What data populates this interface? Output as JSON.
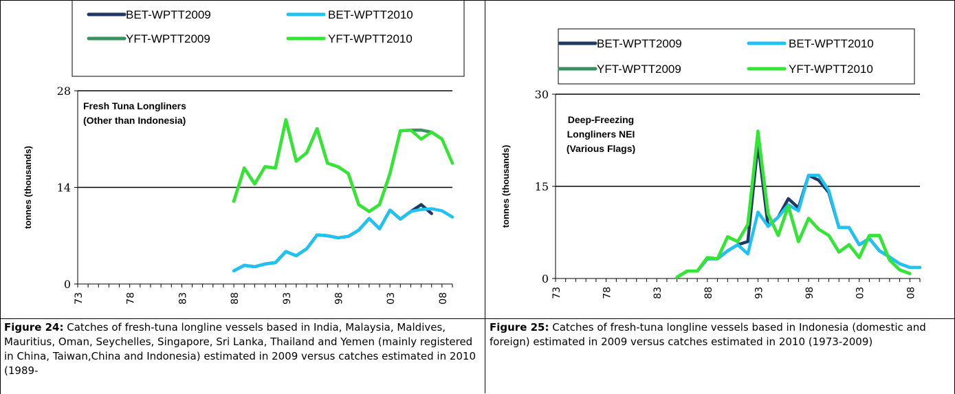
{
  "chart_data": [
    {
      "type": "line",
      "annotation": [
        "Fresh Tuna Longliners",
        "(Other than Indonesia)"
      ],
      "y_label": "tonnes (thousands)",
      "categories": [
        "73",
        null,
        null,
        null,
        null,
        "78",
        null,
        null,
        null,
        null,
        "83",
        null,
        null,
        null,
        null,
        "88",
        null,
        null,
        null,
        null,
        "93",
        null,
        null,
        null,
        null,
        "98",
        null,
        null,
        null,
        null,
        "03",
        null,
        null,
        null,
        null,
        "08",
        null
      ],
      "ylim": [
        0,
        28
      ],
      "yticks": [
        0,
        14,
        28
      ],
      "grid": true,
      "series": [
        {
          "name": "BET-WPTT2009",
          "color": "#1f3864",
          "values": [
            null,
            null,
            null,
            null,
            null,
            null,
            null,
            null,
            null,
            null,
            null,
            null,
            null,
            null,
            null,
            1.9,
            2.7,
            2.5,
            2.9,
            3.1,
            4.7,
            4.1,
            5.1,
            7.1,
            7.0,
            6.7,
            6.9,
            7.8,
            9.5,
            8.0,
            10.7,
            9.4,
            10.5,
            11.5,
            10.2,
            null,
            null
          ]
        },
        {
          "name": "BET-WPTT2010",
          "color": "#1ec3f2",
          "values": [
            null,
            null,
            null,
            null,
            null,
            null,
            null,
            null,
            null,
            null,
            null,
            null,
            null,
            null,
            null,
            1.9,
            2.7,
            2.5,
            2.9,
            3.1,
            4.7,
            4.1,
            5.1,
            7.1,
            7.0,
            6.7,
            6.9,
            7.8,
            9.5,
            8.0,
            10.7,
            9.4,
            10.5,
            10.8,
            10.9,
            10.6,
            9.7
          ]
        },
        {
          "name": "YFT-WPTT2009",
          "color": "#3a9160",
          "values": [
            null,
            null,
            null,
            null,
            null,
            null,
            null,
            null,
            null,
            null,
            null,
            null,
            null,
            null,
            null,
            12.0,
            16.8,
            14.5,
            17.0,
            16.8,
            23.8,
            17.8,
            19.0,
            22.5,
            17.5,
            17.0,
            16.0,
            11.5,
            10.5,
            11.5,
            16.0,
            22.2,
            22.3,
            22.3,
            22.0,
            21.0,
            null
          ]
        },
        {
          "name": "YFT-WPTT2010",
          "color": "#33e633",
          "values": [
            null,
            null,
            null,
            null,
            null,
            null,
            null,
            null,
            null,
            null,
            null,
            null,
            null,
            null,
            null,
            12.0,
            16.8,
            14.5,
            17.0,
            16.8,
            23.8,
            17.8,
            19.0,
            22.5,
            17.5,
            17.0,
            16.0,
            11.5,
            10.5,
            11.5,
            16.0,
            22.2,
            22.3,
            21.0,
            22.0,
            21.0,
            17.5
          ]
        }
      ]
    },
    {
      "type": "line",
      "annotation": [
        "Deep-Freezing",
        "Longliners NEI",
        "(Various Flags)"
      ],
      "y_label": "tonnes (thousands)",
      "categories": [
        "73",
        null,
        null,
        null,
        null,
        "78",
        null,
        null,
        null,
        null,
        "83",
        null,
        null,
        null,
        null,
        "88",
        null,
        null,
        null,
        null,
        "93",
        null,
        null,
        null,
        null,
        "98",
        null,
        null,
        null,
        null,
        "03",
        null,
        null,
        null,
        null,
        "08",
        null
      ],
      "ylim": [
        0,
        30
      ],
      "yticks": [
        0,
        15,
        30
      ],
      "grid": true,
      "series": [
        {
          "name": "BET-WPTT2009",
          "color": "#1f3864",
          "values": [
            null,
            null,
            null,
            null,
            null,
            null,
            null,
            null,
            null,
            null,
            null,
            null,
            0.2,
            1.2,
            1.2,
            3.2,
            3.2,
            4.5,
            5.5,
            6.0,
            22.0,
            8.5,
            10.0,
            13.0,
            11.5,
            16.8,
            16.0,
            14.0,
            8.3,
            8.3,
            5.5,
            6.5,
            4.5,
            3.5,
            2.4,
            1.8,
            null
          ]
        },
        {
          "name": "BET-WPTT2010",
          "color": "#1ec3f2",
          "values": [
            null,
            null,
            null,
            null,
            null,
            null,
            null,
            null,
            null,
            null,
            null,
            null,
            0.2,
            1.2,
            1.2,
            3.2,
            3.2,
            4.5,
            5.5,
            4.0,
            10.8,
            8.5,
            10.0,
            12.0,
            11.0,
            16.8,
            16.8,
            14.3,
            8.3,
            8.3,
            5.5,
            6.5,
            4.5,
            3.5,
            2.4,
            1.8,
            1.8
          ]
        },
        {
          "name": "YFT-WPTT2009",
          "color": "#3a9160",
          "values": [
            null,
            null,
            null,
            null,
            null,
            null,
            null,
            null,
            null,
            null,
            null,
            null,
            0.2,
            1.2,
            1.2,
            3.4,
            3.2,
            6.8,
            6.0,
            8.8,
            23.5,
            10.5,
            7.0,
            11.8,
            6.0,
            9.8,
            8.0,
            7.0,
            4.3,
            5.5,
            3.4,
            7.0,
            7.0,
            3.0,
            1.4,
            0.8,
            null
          ]
        },
        {
          "name": "YFT-WPTT2010",
          "color": "#33e633",
          "values": [
            null,
            null,
            null,
            null,
            null,
            null,
            null,
            null,
            null,
            null,
            null,
            null,
            0.2,
            1.2,
            1.2,
            3.4,
            3.2,
            6.8,
            6.0,
            8.8,
            24.0,
            10.5,
            7.0,
            11.8,
            6.0,
            9.8,
            8.0,
            7.0,
            4.3,
            5.5,
            3.4,
            7.0,
            7.0,
            3.0,
            1.4,
            0.8,
            null
          ]
        }
      ]
    }
  ],
  "captions": [
    {
      "label": "Figure 24:",
      "text": " Catches of fresh-tuna longline vessels based in India, Malaysia, Maldives, Mauritius, Oman, Seychelles, Singapore, Sri Lanka, Thailand and Yemen  (mainly registered in China, Taiwan,China and Indonesia) estimated in 2009 versus catches estimated in 2010 (1989-"
    },
    {
      "label": "Figure 25:",
      "text": " Catches of fresh-tuna longline vessels based in Indonesia (domestic and foreign) estimated in 2009 versus catches estimated in 2010 (1973-2009)"
    }
  ]
}
